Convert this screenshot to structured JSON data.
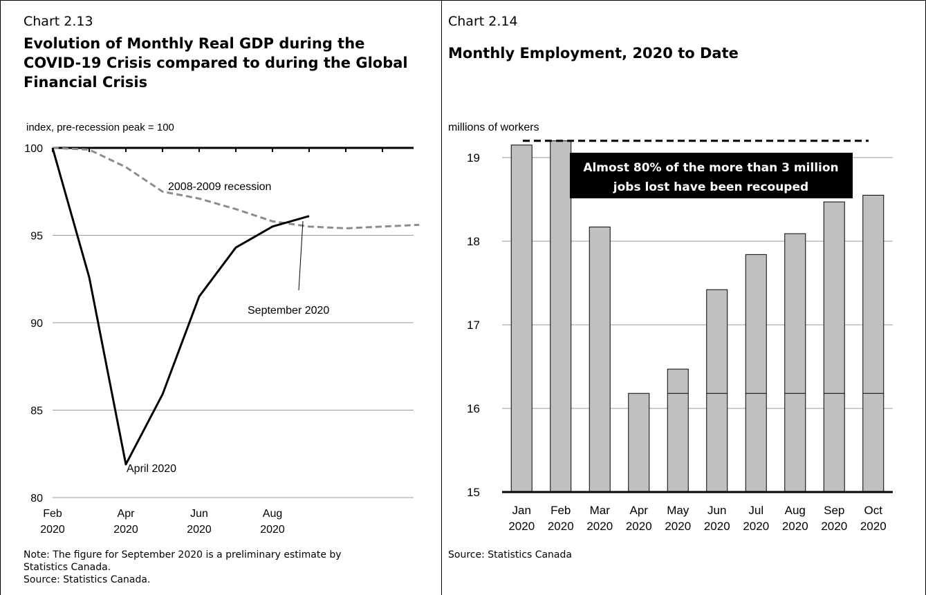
{
  "left": {
    "chart_num": "Chart 2.13",
    "title_lines": [
      "Evolution of Monthly Real GDP during the",
      "COVID-19 Crisis compared to during the Global",
      "Financial Crisis"
    ],
    "note_lines": [
      "Note: The figure for September 2020 is a preliminary estimate by",
      "Statistics Canada.",
      "Source: Statistics Canada."
    ]
  },
  "right": {
    "chart_num": "Chart 2.14",
    "title": "Monthly Employment, 2020 to Date",
    "note": "Source: Statistics Canada"
  },
  "chart_data": [
    {
      "type": "line",
      "ylabel": "index, pre-recession peak = 100",
      "ylim": [
        80,
        100
      ],
      "yticks": [
        "80",
        "85",
        "90",
        "95",
        "100"
      ],
      "xlim": [
        0,
        15
      ],
      "xticks": [
        {
          "x": 0,
          "label": [
            "Feb",
            "2020"
          ]
        },
        {
          "x": 2,
          "label": [
            "Apr",
            "2020"
          ]
        },
        {
          "x": 4,
          "label": [
            "Jun",
            "2020"
          ]
        },
        {
          "x": 6,
          "label": [
            "Aug",
            "2020"
          ]
        }
      ],
      "series": [
        {
          "name": "",
          "style": "solid",
          "color": "#000000",
          "x": [
            0,
            1,
            2,
            3,
            4,
            5,
            6,
            7
          ],
          "values": [
            100,
            92.6,
            81.9,
            85.9,
            91.5,
            94.3,
            95.5,
            96.1
          ]
        },
        {
          "name": "2008-2009 recession",
          "style": "dashed",
          "color": "#8c8c8c",
          "x": [
            0,
            1,
            2,
            3,
            4,
            5,
            6,
            7,
            8,
            9,
            10
          ],
          "values": [
            100,
            99.9,
            98.9,
            97.5,
            97.1,
            96.5,
            95.8,
            95.5,
            95.4,
            95.5,
            95.6
          ]
        }
      ],
      "annotations": [
        {
          "text": "2008-2009 recession"
        },
        {
          "text": "September 2020"
        },
        {
          "text": "April 2020"
        }
      ]
    },
    {
      "type": "bar",
      "ylabel": "millions of workers",
      "ylim": [
        15,
        19.3
      ],
      "yticks": [
        "15",
        "16",
        "17",
        "18",
        "19"
      ],
      "categories": [
        [
          "Jan",
          "2020"
        ],
        [
          "Feb",
          "2020"
        ],
        [
          "Mar",
          "2020"
        ],
        [
          "Apr",
          "2020"
        ],
        [
          "May",
          "2020"
        ],
        [
          "Jun",
          "2020"
        ],
        [
          "Jul",
          "2020"
        ],
        [
          "Aug",
          "2020"
        ],
        [
          "Sep",
          "2020"
        ],
        [
          "Oct",
          "2020"
        ]
      ],
      "values": [
        19.15,
        19.2,
        18.17,
        16.18,
        16.47,
        17.42,
        17.84,
        18.09,
        18.47,
        18.55
      ],
      "trough_reference": 16.18,
      "peak_reference": 19.2,
      "bar_color": "#c0c0c0",
      "annotation": [
        "Almost 80% of the more than 3 million",
        "jobs lost have been recouped"
      ]
    }
  ]
}
